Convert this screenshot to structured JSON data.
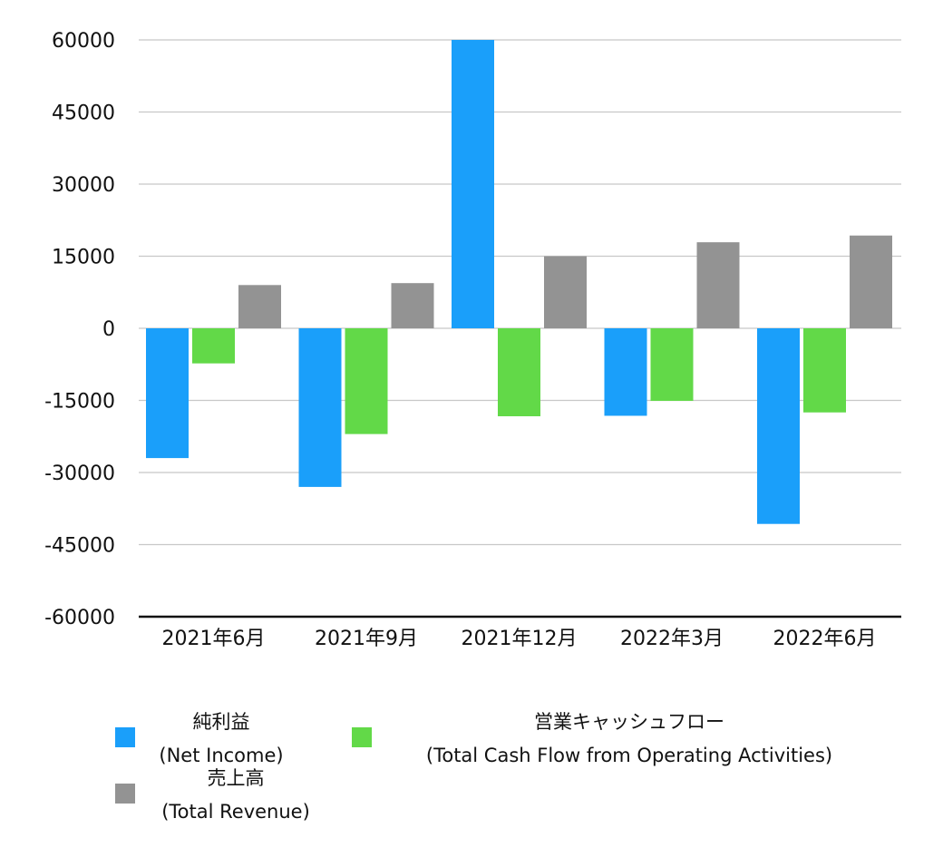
{
  "chart_data": {
    "type": "bar",
    "categories": [
      "2021年6月",
      "2021年9月",
      "2021年12月",
      "2022年3月",
      "2022年6月"
    ],
    "series": [
      {
        "name": "純利益\n(Net Income)",
        "name_lines": [
          "純利益",
          "(Net Income)"
        ],
        "color": "#1a9ffa",
        "values": [
          -27000,
          -33000,
          60000,
          -18200,
          -40700
        ]
      },
      {
        "name": "営業キャッシュフロー\n(Total Cash Flow from Operating Activities)",
        "name_lines": [
          "営業キャッシュフロー",
          "(Total Cash Flow from Operating Activities)"
        ],
        "color": "#62d948",
        "values": [
          -7300,
          -22000,
          -18300,
          -15100,
          -17500
        ]
      },
      {
        "name": "売上高\n(Total Revenue)",
        "name_lines": [
          "売上高",
          "(Total Revenue)"
        ],
        "color": "#939393",
        "values": [
          9000,
          9400,
          15000,
          17900,
          19300
        ]
      }
    ],
    "y_ticks": [
      "60000",
      "45000",
      "30000",
      "15000",
      "0",
      "-15000",
      "-30000",
      "-45000",
      "-60000"
    ],
    "ylim": [
      -60000,
      60000
    ],
    "grid": true,
    "legend_position": "bottom",
    "title": "",
    "xlabel": "",
    "ylabel": ""
  }
}
